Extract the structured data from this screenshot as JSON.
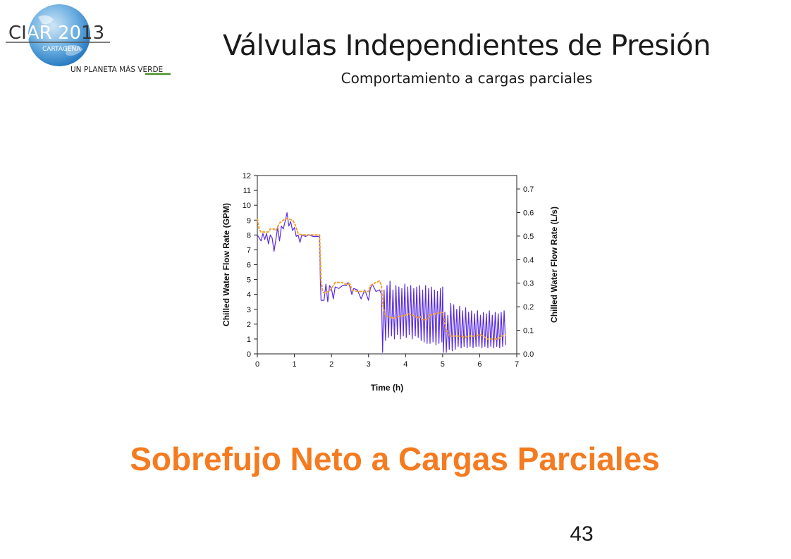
{
  "slide": {
    "title": "Válvulas Independientes de Presión",
    "subtitle": "Comportamiento a cargas parciales",
    "headline": "Sobrefujo Neto a Cargas Parciales",
    "page_number": "43"
  },
  "logo": {
    "text_left": "CI",
    "text_mid": "AR 20",
    "text_right": "13",
    "city": "CARTAGENA",
    "tagline_a": "UN PLANETA MÁS ",
    "tagline_b": "VERDE"
  },
  "colors": {
    "headline": "#f47b20",
    "series_flow": "#5a2be0",
    "series_avg": "#f0a030",
    "logo_blue": "#1e73be",
    "logo_green": "#4a8f2a"
  },
  "chart_data": {
    "type": "line",
    "xlabel": "Time (h)",
    "ylabel": "Chilled Water Flow Rate (GPM)",
    "y2label": "Chilled Water Flow Rate (L/s)",
    "xlim": [
      0,
      7
    ],
    "ylim": [
      0,
      12
    ],
    "y2lim": [
      0,
      0.757
    ],
    "x_ticks": [
      "0",
      "1",
      "2",
      "3",
      "4",
      "5",
      "6",
      "7"
    ],
    "y_ticks": [
      "0",
      "1",
      "2",
      "3",
      "4",
      "5",
      "6",
      "7",
      "8",
      "9",
      "10",
      "11",
      "12"
    ],
    "y2_ticks": [
      "0.0",
      "0.1",
      "0.2",
      "0.3",
      "0.4",
      "0.5",
      "0.6",
      "0.7"
    ],
    "grid": false,
    "series": [
      {
        "color": "#5a2be0",
        "style": "fluctuating line",
        "points": [
          [
            0.0,
            8.0
          ],
          [
            0.1,
            7.6
          ],
          [
            0.15,
            8.1
          ],
          [
            0.2,
            7.7
          ],
          [
            0.25,
            8.1
          ],
          [
            0.3,
            7.4
          ],
          [
            0.35,
            8.0
          ],
          [
            0.4,
            7.8
          ],
          [
            0.45,
            6.9
          ],
          [
            0.5,
            7.7
          ],
          [
            0.55,
            8.5
          ],
          [
            0.6,
            7.6
          ],
          [
            0.65,
            8.6
          ],
          [
            0.7,
            8.4
          ],
          [
            0.75,
            8.9
          ],
          [
            0.8,
            9.5
          ],
          [
            0.85,
            8.6
          ],
          [
            0.9,
            8.9
          ],
          [
            0.95,
            8.3
          ],
          [
            1.0,
            8.5
          ],
          [
            1.05,
            7.9
          ],
          [
            1.1,
            8.0
          ],
          [
            1.15,
            7.5
          ],
          [
            1.2,
            8.0
          ],
          [
            1.3,
            7.9
          ],
          [
            1.4,
            8.0
          ],
          [
            1.5,
            7.9
          ],
          [
            1.6,
            7.9
          ],
          [
            1.68,
            7.9
          ],
          [
            1.7,
            5.0
          ],
          [
            1.72,
            3.6
          ],
          [
            1.8,
            3.6
          ],
          [
            1.85,
            4.7
          ],
          [
            1.9,
            3.5
          ],
          [
            1.95,
            4.6
          ],
          [
            2.0,
            4.4
          ],
          [
            2.05,
            3.7
          ],
          [
            2.1,
            4.5
          ],
          [
            2.2,
            4.4
          ],
          [
            2.3,
            4.6
          ],
          [
            2.4,
            4.6
          ],
          [
            2.45,
            4.8
          ],
          [
            2.5,
            4.5
          ],
          [
            2.55,
            4.0
          ],
          [
            2.6,
            4.4
          ],
          [
            2.7,
            4.3
          ],
          [
            2.8,
            3.7
          ],
          [
            2.9,
            4.3
          ],
          [
            3.0,
            3.6
          ],
          [
            3.05,
            4.4
          ],
          [
            3.1,
            4.7
          ],
          [
            3.2,
            4.2
          ],
          [
            3.3,
            4.3
          ],
          [
            3.35,
            4.0
          ],
          [
            3.38,
            0.1
          ],
          [
            3.42,
            4.3
          ],
          [
            3.46,
            0.9
          ],
          [
            3.5,
            4.6
          ],
          [
            3.54,
            1.1
          ],
          [
            3.58,
            4.9
          ],
          [
            3.62,
            1.2
          ],
          [
            3.66,
            4.3
          ],
          [
            3.7,
            1.0
          ],
          [
            3.74,
            4.6
          ],
          [
            3.78,
            1.3
          ],
          [
            3.82,
            4.5
          ],
          [
            3.86,
            1.0
          ],
          [
            3.9,
            4.4
          ],
          [
            3.94,
            1.2
          ],
          [
            3.98,
            4.7
          ],
          [
            4.02,
            1.1
          ],
          [
            4.06,
            4.5
          ],
          [
            4.1,
            1.3
          ],
          [
            4.14,
            4.6
          ],
          [
            4.18,
            1.0
          ],
          [
            4.22,
            4.4
          ],
          [
            4.26,
            1.2
          ],
          [
            4.3,
            4.5
          ],
          [
            4.34,
            1.1
          ],
          [
            4.38,
            4.6
          ],
          [
            4.42,
            0.9
          ],
          [
            4.46,
            4.3
          ],
          [
            4.5,
            0.8
          ],
          [
            4.54,
            4.6
          ],
          [
            4.58,
            0.7
          ],
          [
            4.62,
            4.4
          ],
          [
            4.66,
            0.7
          ],
          [
            4.7,
            4.5
          ],
          [
            4.74,
            0.8
          ],
          [
            4.78,
            4.3
          ],
          [
            4.82,
            0.6
          ],
          [
            4.86,
            4.2
          ],
          [
            4.9,
            0.7
          ],
          [
            4.94,
            4.4
          ],
          [
            4.98,
            0.8
          ],
          [
            5.0,
            4.5
          ],
          [
            5.02,
            0.1
          ],
          [
            5.06,
            2.8
          ],
          [
            5.1,
            0.1
          ],
          [
            5.14,
            2.6
          ],
          [
            5.18,
            0.3
          ],
          [
            5.22,
            3.4
          ],
          [
            5.26,
            0.2
          ],
          [
            5.3,
            3.3
          ],
          [
            5.34,
            0.3
          ],
          [
            5.38,
            3.0
          ],
          [
            5.42,
            0.5
          ],
          [
            5.46,
            3.2
          ],
          [
            5.5,
            0.4
          ],
          [
            5.54,
            2.9
          ],
          [
            5.58,
            0.5
          ],
          [
            5.62,
            3.1
          ],
          [
            5.66,
            0.4
          ],
          [
            5.7,
            2.8
          ],
          [
            5.74,
            0.5
          ],
          [
            5.78,
            2.9
          ],
          [
            5.82,
            0.4
          ],
          [
            5.86,
            2.7
          ],
          [
            5.9,
            0.5
          ],
          [
            5.94,
            2.9
          ],
          [
            5.98,
            0.5
          ],
          [
            6.02,
            2.6
          ],
          [
            6.06,
            0.4
          ],
          [
            6.1,
            2.8
          ],
          [
            6.14,
            0.5
          ],
          [
            6.18,
            2.7
          ],
          [
            6.22,
            0.4
          ],
          [
            6.26,
            2.9
          ],
          [
            6.3,
            0.5
          ],
          [
            6.34,
            2.6
          ],
          [
            6.38,
            0.4
          ],
          [
            6.42,
            2.8
          ],
          [
            6.46,
            0.5
          ],
          [
            6.5,
            2.7
          ],
          [
            6.54,
            0.4
          ],
          [
            6.58,
            2.8
          ],
          [
            6.62,
            0.5
          ],
          [
            6.66,
            2.9
          ],
          [
            6.7,
            0.6
          ]
        ]
      },
      {
        "color": "#f0a030",
        "style": "averaged step line",
        "points": [
          [
            0.0,
            9.1
          ],
          [
            0.05,
            8.4
          ],
          [
            0.1,
            8.2
          ],
          [
            0.3,
            8.2
          ],
          [
            0.35,
            8.4
          ],
          [
            0.45,
            8.4
          ],
          [
            0.5,
            8.3
          ],
          [
            0.6,
            8.8
          ],
          [
            0.7,
            9.0
          ],
          [
            0.8,
            9.1
          ],
          [
            0.95,
            9.0
          ],
          [
            1.0,
            8.8
          ],
          [
            1.05,
            8.5
          ],
          [
            1.1,
            8.1
          ],
          [
            1.2,
            8.0
          ],
          [
            1.68,
            8.0
          ],
          [
            1.72,
            4.9
          ],
          [
            1.76,
            4.3
          ],
          [
            1.8,
            4.1
          ],
          [
            1.95,
            4.2
          ],
          [
            2.0,
            4.4
          ],
          [
            2.05,
            4.6
          ],
          [
            2.1,
            4.8
          ],
          [
            2.3,
            4.8
          ],
          [
            2.35,
            4.7
          ],
          [
            2.5,
            4.7
          ],
          [
            2.55,
            4.3
          ],
          [
            2.7,
            4.2
          ],
          [
            3.0,
            4.2
          ],
          [
            3.05,
            4.6
          ],
          [
            3.2,
            4.8
          ],
          [
            3.3,
            4.9
          ],
          [
            3.35,
            4.6
          ],
          [
            3.38,
            3.4
          ],
          [
            3.42,
            2.9
          ],
          [
            3.46,
            2.6
          ],
          [
            3.5,
            2.5
          ],
          [
            3.7,
            2.4
          ],
          [
            3.8,
            2.5
          ],
          [
            4.0,
            2.6
          ],
          [
            4.1,
            2.7
          ],
          [
            4.2,
            2.6
          ],
          [
            4.35,
            2.4
          ],
          [
            4.4,
            2.5
          ],
          [
            4.45,
            2.3
          ],
          [
            4.6,
            2.3
          ],
          [
            4.65,
            2.6
          ],
          [
            4.8,
            2.7
          ],
          [
            5.0,
            2.8
          ],
          [
            5.05,
            2.1
          ],
          [
            5.1,
            1.6
          ],
          [
            5.15,
            1.3
          ],
          [
            5.2,
            1.2
          ],
          [
            5.5,
            1.2
          ],
          [
            5.6,
            1.1
          ],
          [
            5.7,
            1.2
          ],
          [
            5.9,
            1.2
          ],
          [
            6.0,
            1.3
          ],
          [
            6.1,
            1.2
          ],
          [
            6.2,
            1.0
          ],
          [
            6.5,
            1.0
          ],
          [
            6.6,
            1.2
          ],
          [
            6.7,
            1.3
          ]
        ]
      }
    ]
  }
}
